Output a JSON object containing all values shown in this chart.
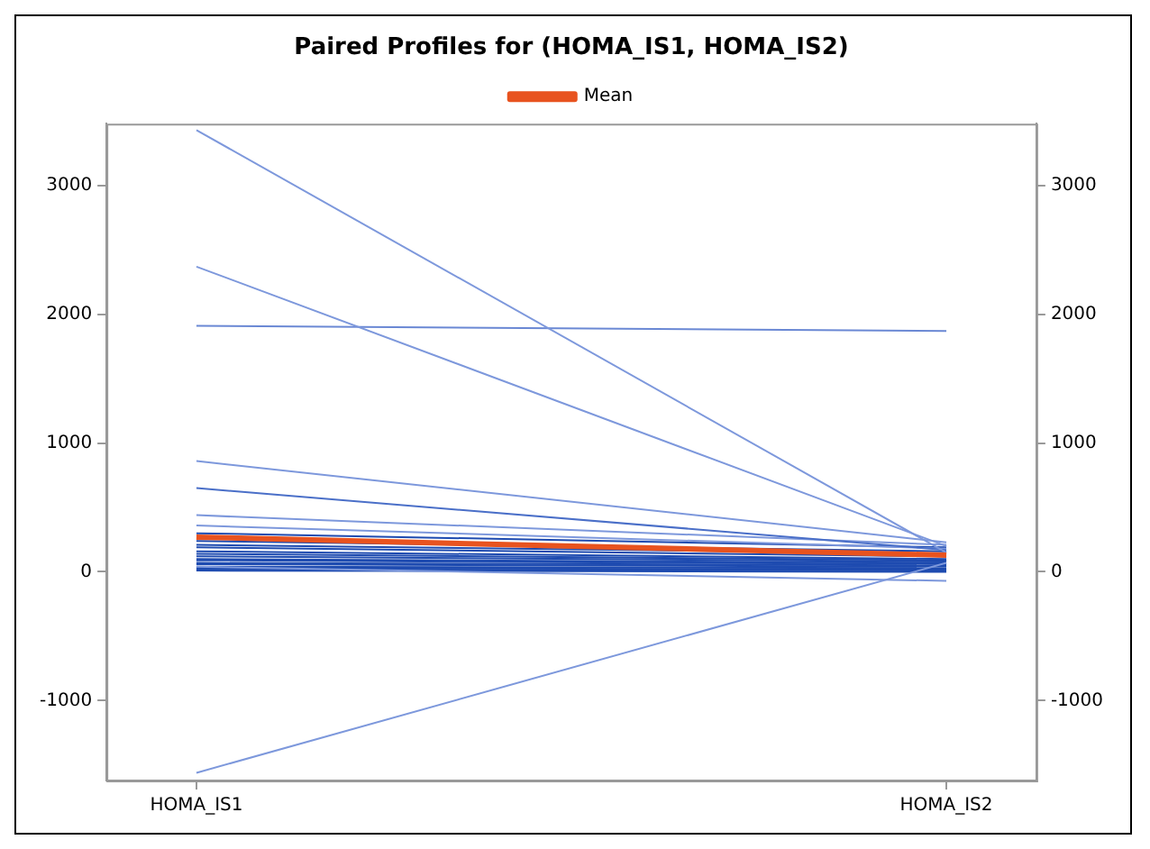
{
  "chart_data": {
    "type": "line",
    "title": "Paired Profiles for (HOMA_IS1, HOMA_IS2)",
    "categories": [
      "HOMA_IS1",
      "HOMA_IS2"
    ],
    "ylim": [
      -1620,
      3480
    ],
    "yticks": [
      -1000,
      0,
      1000,
      2000,
      3000
    ],
    "y2lim": [
      -1620,
      3480
    ],
    "y2ticks": [
      -1000,
      0,
      1000,
      2000,
      3000
    ],
    "legend": "top",
    "marker": "none",
    "line_style": "solid",
    "series": [
      {
        "color": "#7d98dc",
        "values": [
          3430,
          150
        ]
      },
      {
        "color": "#7d98dc",
        "values": [
          2370,
          200
        ]
      },
      {
        "color": "#6a88d4",
        "values": [
          1910,
          1870
        ]
      },
      {
        "color": "#7d98dc",
        "values": [
          860,
          230
        ]
      },
      {
        "color": "#4a6fc8",
        "values": [
          650,
          170
        ]
      },
      {
        "color": "#7d98dc",
        "values": [
          440,
          210
        ]
      },
      {
        "color": "#7d98dc",
        "values": [
          360,
          180
        ]
      },
      {
        "color": "#7d98dc",
        "values": [
          -1560,
          70
        ]
      },
      {
        "color": "#7d98dc",
        "values": [
          40,
          -70
        ]
      },
      {
        "color": "#1e4bb0",
        "values": [
          300,
          190
        ]
      },
      {
        "color": "#1e4bb0",
        "values": [
          240,
          160
        ]
      },
      {
        "color": "#1e4bb0",
        "values": [
          210,
          140
        ]
      },
      {
        "color": "#1e4bb0",
        "values": [
          190,
          120
        ]
      },
      {
        "color": "#1e4bb0",
        "values": [
          160,
          100
        ]
      },
      {
        "color": "#1e4bb0",
        "values": [
          140,
          90
        ]
      },
      {
        "color": "#1e4bb0",
        "values": [
          120,
          80
        ]
      },
      {
        "color": "#1e4bb0",
        "values": [
          100,
          70
        ]
      },
      {
        "color": "#1e4bb0",
        "values": [
          90,
          60
        ]
      },
      {
        "color": "#1e4bb0",
        "values": [
          70,
          50
        ]
      },
      {
        "color": "#1e4bb0",
        "values": [
          60,
          40
        ]
      },
      {
        "color": "#1e4bb0",
        "values": [
          40,
          30
        ]
      },
      {
        "color": "#1e4bb0",
        "values": [
          30,
          20
        ]
      },
      {
        "color": "#1e4bb0",
        "values": [
          20,
          10
        ]
      },
      {
        "color": "#1e4bb0",
        "values": [
          10,
          0
        ]
      },
      {
        "name": "Mean",
        "color": "#e8531f",
        "values": [
          270,
          130
        ]
      }
    ]
  }
}
